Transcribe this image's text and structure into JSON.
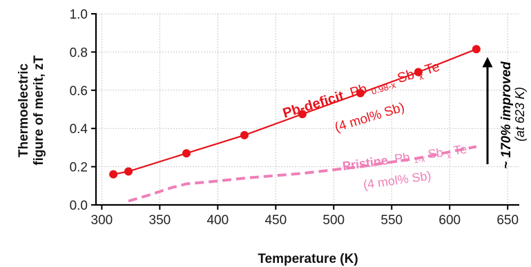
{
  "chart_data": {
    "type": "line",
    "xlabel": "Temperature (K)",
    "ylabel_line1": "Thermoelectric",
    "ylabel_line2": "figure of merit, zT",
    "xlim": [
      295,
      660
    ],
    "ylim": [
      0,
      1.0
    ],
    "x_ticks": [
      300,
      350,
      400,
      450,
      500,
      550,
      600,
      650
    ],
    "y_ticks": [
      0.0,
      0.2,
      0.4,
      0.6,
      0.8,
      1.0
    ],
    "x_tick_labels": [
      "300",
      "350",
      "400",
      "450",
      "500",
      "550",
      "600",
      "650"
    ],
    "y_tick_labels": [
      "0.0",
      "0.2",
      "0.4",
      "0.6",
      "0.8",
      "1.0"
    ],
    "grid": true,
    "series": [
      {
        "color": "#e8121a",
        "style": "solid-with-markers",
        "x": [
          310,
          323,
          373,
          423,
          473,
          523,
          573,
          623
        ],
        "y": [
          0.16,
          0.175,
          0.27,
          0.365,
          0.475,
          0.585,
          0.695,
          0.815
        ]
      },
      {
        "color": "#ee7fb8",
        "style": "dashed",
        "x": [
          323,
          340,
          360,
          373,
          400,
          423,
          473,
          523,
          573,
          623
        ],
        "y": [
          0.02,
          0.05,
          0.09,
          0.11,
          0.125,
          0.14,
          0.165,
          0.2,
          0.245,
          0.305
        ]
      }
    ],
    "annotations": {
      "red_name": "Pb-deficit",
      "red_base": "Pb",
      "red_sub1": "0.98-x",
      "red_mid": "Sb",
      "red_sub2": "x",
      "red_end": "Te",
      "red_note": "(4 mol% Sb)",
      "pink_name": "Pristine",
      "pink_base": "Pb",
      "pink_sub1": "1-x",
      "pink_mid": "Sb",
      "pink_sub2": "x",
      "pink_end": "Te",
      "pink_note": "(4 mol% Sb)",
      "improve_text": "~ 170% improved",
      "improve_note": "(at 623 K)"
    }
  }
}
